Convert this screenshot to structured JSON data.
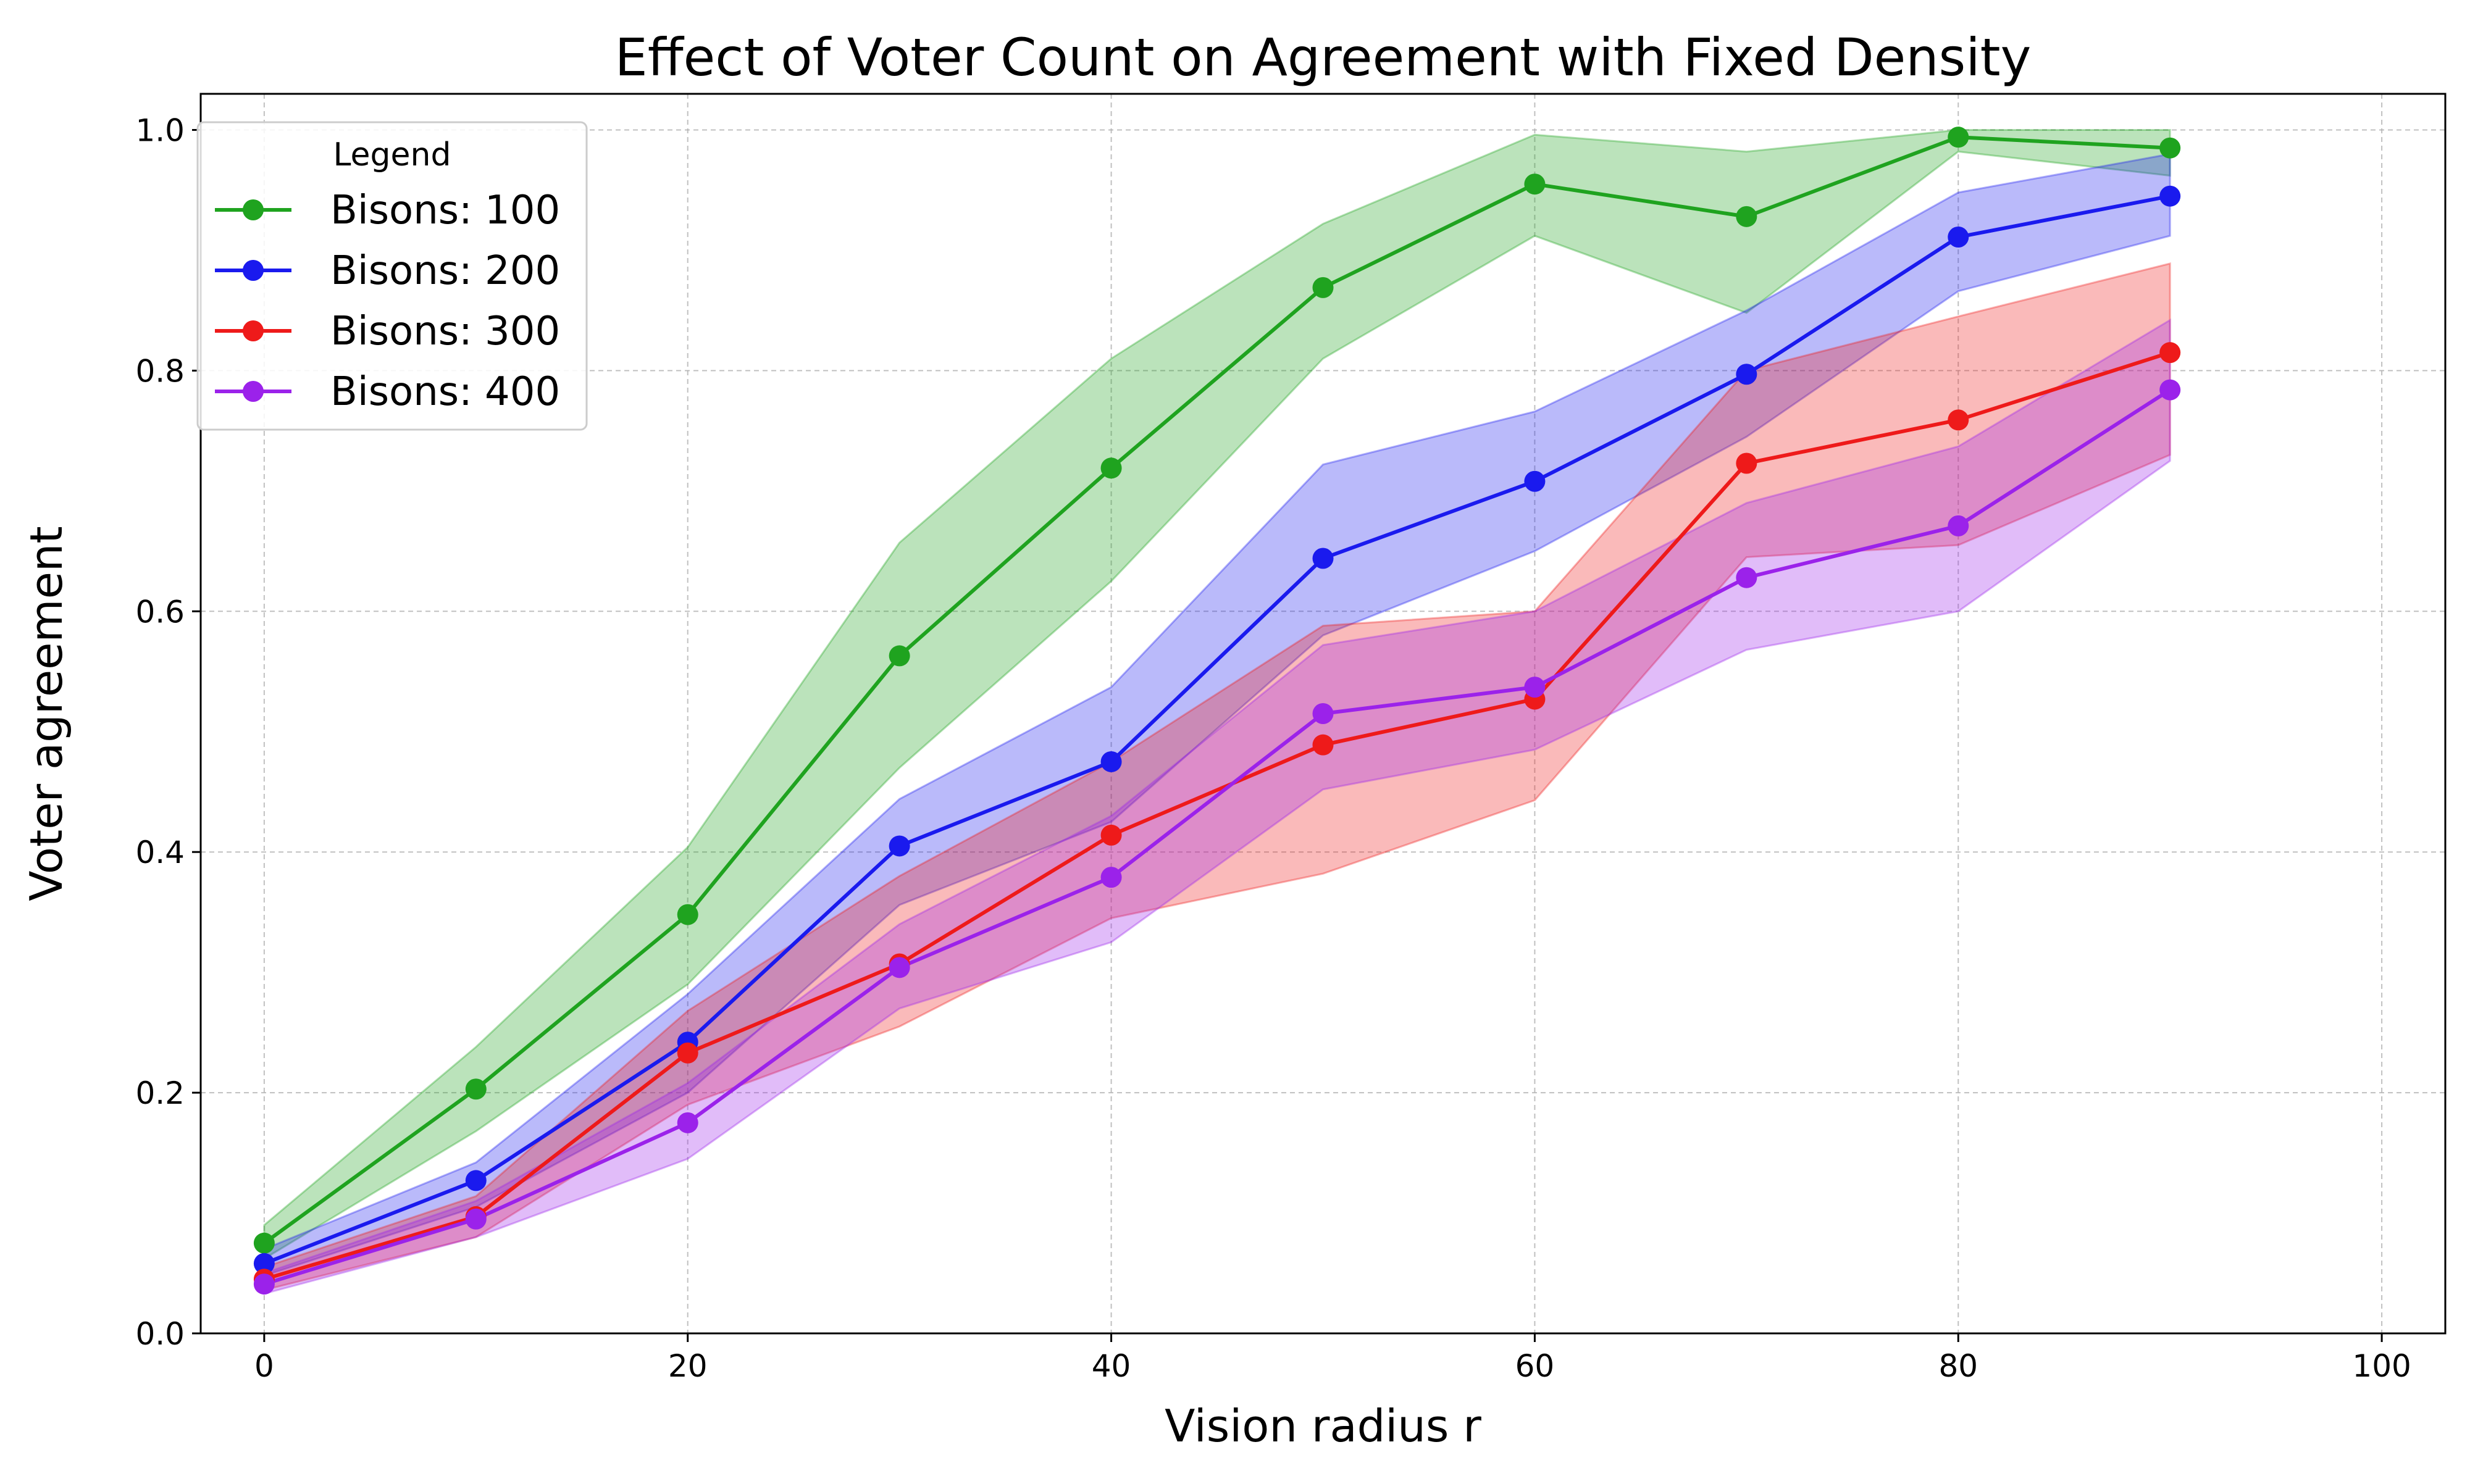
{
  "chart_data": {
    "type": "line",
    "title": "Effect of Voter Count on Agreement with Fixed Density",
    "xlabel": "Vision radius r",
    "ylabel": "Voter agreement",
    "xlim": [
      -3,
      103
    ],
    "ylim": [
      0,
      1.03
    ],
    "xticks": [
      0,
      20,
      40,
      60,
      80,
      100
    ],
    "yticks": [
      0.0,
      0.2,
      0.4,
      0.6,
      0.8,
      1.0
    ],
    "xtick_labels": [
      "0",
      "20",
      "40",
      "60",
      "80",
      "100"
    ],
    "ytick_labels": [
      "0.0",
      "0.2",
      "0.4",
      "0.6",
      "0.8",
      "1.0"
    ],
    "grid": true,
    "legend": {
      "title": "Legend",
      "position": "top-left"
    },
    "x": [
      0,
      10,
      20,
      30,
      40,
      50,
      60,
      70,
      80,
      90
    ],
    "series": [
      {
        "name": "Bisons: 100",
        "color": "#1fa31f",
        "values": [
          0.075,
          0.203,
          0.348,
          0.563,
          0.719,
          0.869,
          0.955,
          0.928,
          0.994,
          0.985
        ],
        "lower": [
          0.062,
          0.168,
          0.29,
          0.47,
          0.625,
          0.81,
          0.912,
          0.848,
          0.982,
          0.962
        ],
        "upper": [
          0.09,
          0.238,
          0.404,
          0.657,
          0.81,
          0.922,
          0.996,
          0.982,
          1.0,
          1.0
        ]
      },
      {
        "name": "Bisons: 200",
        "color": "#1a1aee",
        "values": [
          0.058,
          0.127,
          0.242,
          0.405,
          0.475,
          0.644,
          0.708,
          0.797,
          0.911,
          0.945
        ],
        "lower": [
          0.048,
          0.105,
          0.2,
          0.356,
          0.425,
          0.58,
          0.65,
          0.745,
          0.866,
          0.912
        ],
        "upper": [
          0.07,
          0.142,
          0.282,
          0.444,
          0.537,
          0.722,
          0.766,
          0.85,
          0.948,
          0.98
        ]
      },
      {
        "name": "Bisons: 300",
        "color": "#ee1a1a",
        "values": [
          0.045,
          0.097,
          0.233,
          0.307,
          0.414,
          0.489,
          0.527,
          0.723,
          0.759,
          0.815
        ],
        "lower": [
          0.036,
          0.08,
          0.19,
          0.255,
          0.345,
          0.382,
          0.443,
          0.645,
          0.655,
          0.73
        ],
        "upper": [
          0.055,
          0.114,
          0.268,
          0.38,
          0.475,
          0.588,
          0.6,
          0.8,
          0.845,
          0.889
        ]
      },
      {
        "name": "Bisons: 400",
        "color": "#9b22ea",
        "values": [
          0.041,
          0.095,
          0.175,
          0.304,
          0.379,
          0.515,
          0.537,
          0.628,
          0.671,
          0.784
        ],
        "lower": [
          0.033,
          0.08,
          0.145,
          0.27,
          0.325,
          0.452,
          0.485,
          0.568,
          0.6,
          0.725
        ],
        "upper": [
          0.05,
          0.11,
          0.208,
          0.34,
          0.43,
          0.572,
          0.6,
          0.69,
          0.737,
          0.842
        ]
      }
    ]
  }
}
